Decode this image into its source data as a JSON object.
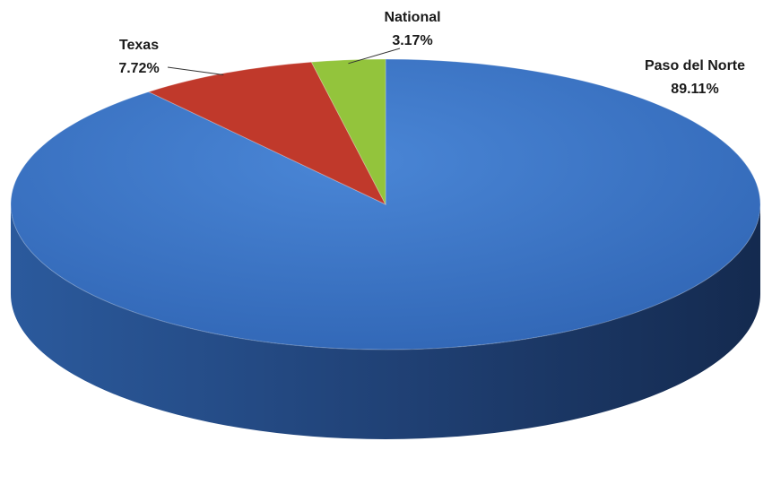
{
  "chart_data": {
    "type": "pie",
    "style": "3d",
    "start_angle_deg": 90,
    "direction": "clockwise",
    "slices": [
      {
        "label": "Paso del Norte",
        "value": 89.11,
        "value_label": "89.11%",
        "color": "#3a72c2",
        "side_color": "#24487f"
      },
      {
        "label": "Texas",
        "value": 7.72,
        "value_label": "7.72%",
        "color": "#c0392b",
        "side_color": "#8e2a20"
      },
      {
        "label": "National",
        "value": 3.17,
        "value_label": "3.17%",
        "color": "#93c43c",
        "side_color": "#6b9128"
      }
    ],
    "legend": "none"
  }
}
